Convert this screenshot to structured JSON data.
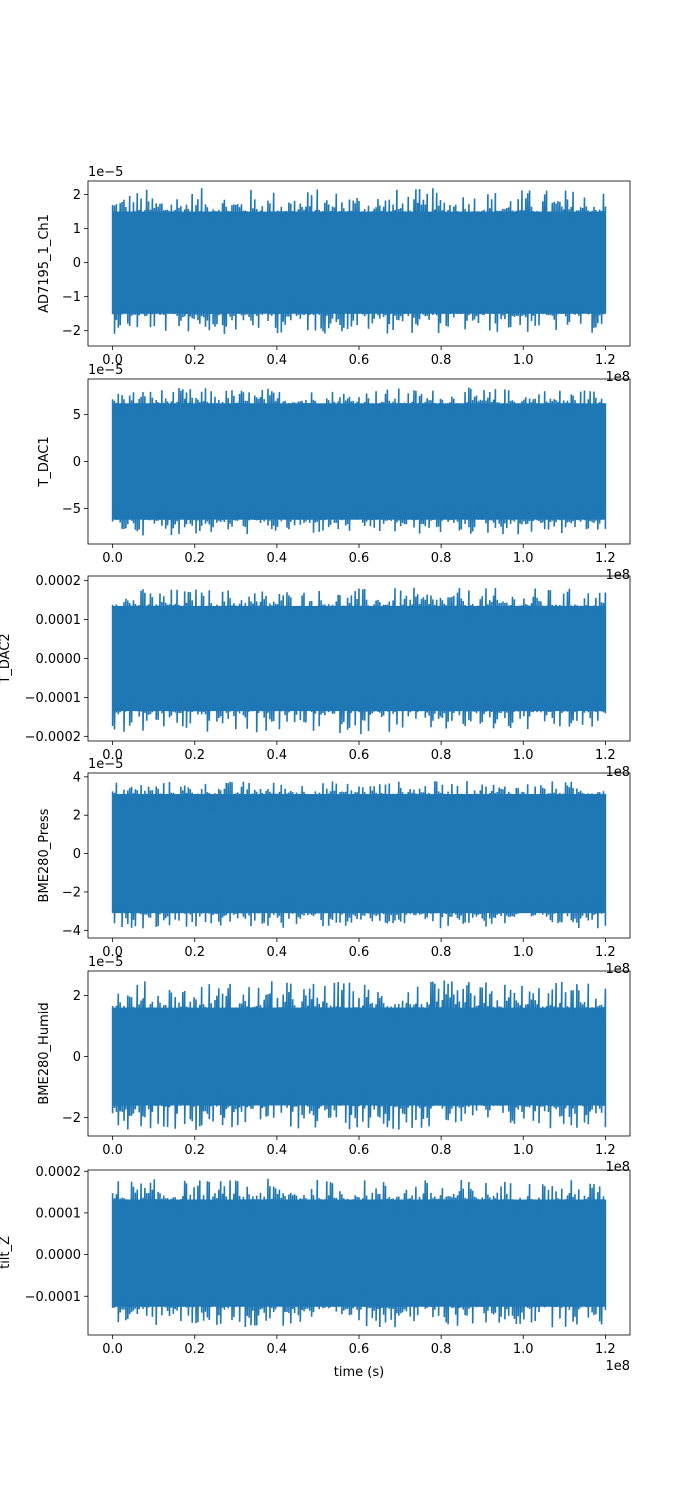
{
  "chart_data": [
    {
      "type": "line",
      "ylabel": "AD7195_1_Ch1",
      "xlabel": "",
      "y_offset_text": "1e−5",
      "x_offset_text": "1e8",
      "color": "#1f77b4",
      "xlim": [
        -0.06,
        1.26
      ],
      "ylim": [
        -2.45,
        2.4
      ],
      "x_ticks": [
        0.0,
        0.2,
        0.4,
        0.6,
        0.8,
        1.0,
        1.2
      ],
      "x_tick_labels": [
        "0.0",
        "0.2",
        "0.4",
        "0.6",
        "0.8",
        "1.0",
        "1.2"
      ],
      "y_ticks": [
        -2,
        -1,
        0,
        1,
        2
      ],
      "y_tick_labels": [
        "−2",
        "−1",
        "0",
        "1",
        "2"
      ],
      "x_range": [
        0.0,
        1.2
      ],
      "envelope": {
        "typical_min": -1.5,
        "typical_max": 1.5,
        "min": -2.1,
        "max": 2.2
      }
    },
    {
      "type": "line",
      "ylabel": "T_DAC1",
      "xlabel": "",
      "y_offset_text": "1e−5",
      "x_offset_text": "1e8",
      "color": "#1f77b4",
      "xlim": [
        -0.06,
        1.26
      ],
      "ylim": [
        -8.8,
        8.8
      ],
      "x_ticks": [
        0.0,
        0.2,
        0.4,
        0.6,
        0.8,
        1.0,
        1.2
      ],
      "x_tick_labels": [
        "0.0",
        "0.2",
        "0.4",
        "0.6",
        "0.8",
        "1.0",
        "1.2"
      ],
      "y_ticks": [
        -5,
        0,
        5
      ],
      "y_tick_labels": [
        "−5",
        "0",
        "5"
      ],
      "x_range": [
        0.0,
        1.2
      ],
      "envelope": {
        "typical_min": -6.2,
        "typical_max": 6.2,
        "min": -7.9,
        "max": 7.9
      }
    },
    {
      "type": "line",
      "ylabel": "T_DAC2",
      "xlabel": "",
      "y_offset_text": "",
      "x_offset_text": "1e8",
      "color": "#1f77b4",
      "xlim": [
        -0.06,
        1.26
      ],
      "ylim": [
        -0.000212,
        0.000212
      ],
      "x_ticks": [
        0.0,
        0.2,
        0.4,
        0.6,
        0.8,
        1.0,
        1.2
      ],
      "x_tick_labels": [
        "0.0",
        "0.2",
        "0.4",
        "0.6",
        "0.8",
        "1.0",
        "1.2"
      ],
      "y_ticks": [
        -0.0002,
        -0.0001,
        0.0,
        0.0001,
        0.0002
      ],
      "y_tick_labels": [
        "−0.0002",
        "−0.0001",
        "0.0000",
        "0.0001",
        "0.0002"
      ],
      "x_range": [
        0.0,
        1.2
      ],
      "envelope": {
        "typical_min": -0.000135,
        "typical_max": 0.000135,
        "min": -0.000195,
        "max": 0.000182
      }
    },
    {
      "type": "line",
      "ylabel": "BME280_Press",
      "xlabel": "",
      "y_offset_text": "1e−5",
      "x_offset_text": "1e8",
      "color": "#1f77b4",
      "xlim": [
        -0.06,
        1.26
      ],
      "ylim": [
        -4.4,
        4.2
      ],
      "x_ticks": [
        0.0,
        0.2,
        0.4,
        0.6,
        0.8,
        1.0,
        1.2
      ],
      "x_tick_labels": [
        "0.0",
        "0.2",
        "0.4",
        "0.6",
        "0.8",
        "1.0",
        "1.2"
      ],
      "y_ticks": [
        -4,
        -2,
        0,
        2,
        4
      ],
      "y_tick_labels": [
        "−4",
        "−2",
        "0",
        "2",
        "4"
      ],
      "x_range": [
        0.0,
        1.2
      ],
      "envelope": {
        "typical_min": -3.1,
        "typical_max": 3.1,
        "min": -3.9,
        "max": 3.8
      }
    },
    {
      "type": "line",
      "ylabel": "BME280_Humid",
      "xlabel": "",
      "y_offset_text": "1e−5",
      "x_offset_text": "1e8",
      "color": "#1f77b4",
      "xlim": [
        -0.06,
        1.26
      ],
      "ylim": [
        -2.6,
        2.8
      ],
      "x_ticks": [
        0.0,
        0.2,
        0.4,
        0.6,
        0.8,
        1.0,
        1.2
      ],
      "x_tick_labels": [
        "0.0",
        "0.2",
        "0.4",
        "0.6",
        "0.8",
        "1.0",
        "1.2"
      ],
      "y_ticks": [
        -2,
        0,
        2
      ],
      "y_tick_labels": [
        "−2",
        "0",
        "2"
      ],
      "x_range": [
        0.0,
        1.2
      ],
      "envelope": {
        "typical_min": -1.6,
        "typical_max": 1.6,
        "min": -2.4,
        "max": 2.5
      }
    },
    {
      "type": "line",
      "ylabel": "tilt_Z",
      "xlabel": "time (s)",
      "y_offset_text": "",
      "x_offset_text": "1e8",
      "color": "#1f77b4",
      "xlim": [
        -0.06,
        1.26
      ],
      "ylim": [
        -0.000193,
        0.000203
      ],
      "x_ticks": [
        0.0,
        0.2,
        0.4,
        0.6,
        0.8,
        1.0,
        1.2
      ],
      "x_tick_labels": [
        "0.0",
        "0.2",
        "0.4",
        "0.6",
        "0.8",
        "1.0",
        "1.2"
      ],
      "y_ticks": [
        -0.0001,
        0.0,
        0.0001,
        0.0002
      ],
      "y_tick_labels": [
        "−0.0001",
        "0.0000",
        "0.0001",
        "0.0002"
      ],
      "x_range": [
        0.0,
        1.2
      ],
      "envelope": {
        "typical_min": -0.000125,
        "typical_max": 0.000132,
        "min": -0.000175,
        "max": 0.000182
      }
    }
  ]
}
